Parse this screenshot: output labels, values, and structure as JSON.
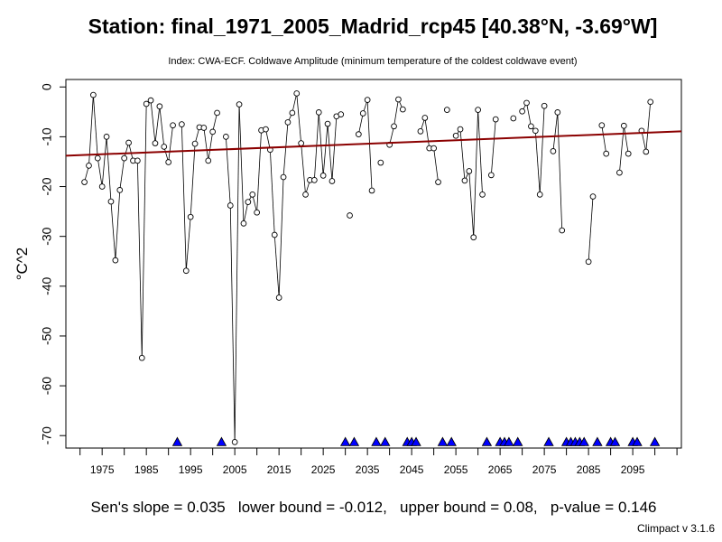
{
  "chart_data": {
    "type": "line",
    "title": "Station: final_1971_2005_Madrid_rcp45 [40.38°N, -3.69°W]",
    "subtitle": "Index: CWA-ECF. Coldwave Amplitude (minimum temperature of the coldest coldwave event)",
    "xlabel": "",
    "ylabel": "°C^2",
    "xlim": [
      1966.8,
      2106
    ],
    "ylim": [
      -72.5,
      1.5
    ],
    "x_ticks": [
      1975,
      1985,
      1995,
      2005,
      2015,
      2025,
      2035,
      2045,
      2055,
      2065,
      2075,
      2085,
      2095
    ],
    "y_ticks": [
      0,
      -10,
      -20,
      -30,
      -40,
      -50,
      -60,
      -70
    ],
    "grid": false,
    "series": [
      {
        "values": [
          [
            1971,
            -19.1
          ],
          [
            1972,
            -15.8
          ],
          [
            1973,
            -1.6
          ],
          [
            1974,
            -14.3
          ],
          [
            1975,
            -20.0
          ],
          [
            1976,
            -10.0
          ],
          [
            1977,
            -23.0
          ],
          [
            1978,
            -34.8
          ],
          [
            1979,
            -20.7
          ],
          [
            1980,
            -14.3
          ],
          [
            1981,
            -11.2
          ],
          [
            1982,
            -14.8
          ],
          [
            1983,
            -14.8
          ],
          [
            1984,
            -54.4
          ],
          [
            1985,
            -3.4
          ],
          [
            1986,
            -2.7
          ],
          [
            1987,
            -11.3
          ],
          [
            1988,
            -3.9
          ],
          [
            1989,
            -12.0
          ],
          [
            1990,
            -15.1
          ],
          [
            1991,
            -7.7
          ],
          [
            1993,
            -7.5
          ],
          [
            1994,
            -36.9
          ],
          [
            1995,
            -26.1
          ],
          [
            1996,
            -11.4
          ],
          [
            1997,
            -8.1
          ],
          [
            1998,
            -8.2
          ],
          [
            1999,
            -14.8
          ],
          [
            2000,
            -9.0
          ],
          [
            2001,
            -5.2
          ],
          [
            2003,
            -10.0
          ],
          [
            2004,
            -23.8
          ],
          [
            2005,
            -71.3
          ],
          [
            2006,
            -3.5
          ],
          [
            2007,
            -27.4
          ],
          [
            2008,
            -23.1
          ],
          [
            2009,
            -21.6
          ],
          [
            2010,
            -25.2
          ],
          [
            2011,
            -8.7
          ],
          [
            2012,
            -8.5
          ],
          [
            2013,
            -12.6
          ],
          [
            2014,
            -29.7
          ],
          [
            2015,
            -42.3
          ],
          [
            2016,
            -18.1
          ],
          [
            2017,
            -7.1
          ],
          [
            2018,
            -5.2
          ],
          [
            2019,
            -1.3
          ],
          [
            2020,
            -11.3
          ],
          [
            2021,
            -21.6
          ],
          [
            2022,
            -18.7
          ],
          [
            2023,
            -18.7
          ],
          [
            2024,
            -5.1
          ],
          [
            2025,
            -17.8
          ],
          [
            2026,
            -7.4
          ],
          [
            2027,
            -18.9
          ],
          [
            2028,
            -5.9
          ],
          [
            2029,
            -5.5
          ],
          [
            2031,
            -25.8
          ],
          [
            2033,
            -9.5
          ],
          [
            2034,
            -5.3
          ],
          [
            2035,
            -2.6
          ],
          [
            2036,
            -20.8
          ],
          [
            2038,
            -15.2
          ],
          [
            2040,
            -11.6
          ],
          [
            2041,
            -7.9
          ],
          [
            2042,
            -2.5
          ],
          [
            2043,
            -4.5
          ],
          [
            2047,
            -8.9
          ],
          [
            2048,
            -6.2
          ],
          [
            2049,
            -12.3
          ],
          [
            2050,
            -12.3
          ],
          [
            2051,
            -19.1
          ],
          [
            2053,
            -4.6
          ],
          [
            2055,
            -9.8
          ],
          [
            2056,
            -8.5
          ],
          [
            2057,
            -18.8
          ],
          [
            2058,
            -16.9
          ],
          [
            2059,
            -30.2
          ],
          [
            2060,
            -4.6
          ],
          [
            2061,
            -21.6
          ],
          [
            2063,
            -17.7
          ],
          [
            2064,
            -6.5
          ],
          [
            2068,
            -6.3
          ],
          [
            2070,
            -4.9
          ],
          [
            2071,
            -3.2
          ],
          [
            2072,
            -7.9
          ],
          [
            2073,
            -8.8
          ],
          [
            2074,
            -21.6
          ],
          [
            2075,
            -3.8
          ],
          [
            2077,
            -12.9
          ],
          [
            2078,
            -5.1
          ],
          [
            2079,
            -28.8
          ],
          [
            2085,
            -35.1
          ],
          [
            2086,
            -22.0
          ],
          [
            2088,
            -7.7
          ],
          [
            2089,
            -13.4
          ],
          [
            2092,
            -17.2
          ],
          [
            2093,
            -7.8
          ],
          [
            2094,
            -13.4
          ],
          [
            2097,
            -8.8
          ],
          [
            2098,
            -13.0
          ],
          [
            2099,
            -3.0
          ]
        ]
      }
    ],
    "trend_line": {
      "x": [
        1966.8,
        2106
      ],
      "y": [
        -13.8,
        -8.9
      ],
      "color": "#8b0000"
    },
    "missing_markers": {
      "y": -71.3,
      "color": "#0000ff",
      "x": [
        1992,
        2002,
        2030,
        2032,
        2037,
        2039,
        2044,
        2045,
        2046,
        2052,
        2054,
        2062,
        2065,
        2066,
        2067,
        2069,
        2076,
        2080,
        2081,
        2082,
        2083,
        2084,
        2087,
        2090,
        2091,
        2095,
        2096,
        2100
      ]
    },
    "point_color": "#000000",
    "line_color": "#000000"
  },
  "footer": {
    "stats": "Sen's slope = 0.035   lower bound = -0.012,   upper bound = 0.08,   p-value = 0.146",
    "version": "Climpact v 3.1.6"
  }
}
